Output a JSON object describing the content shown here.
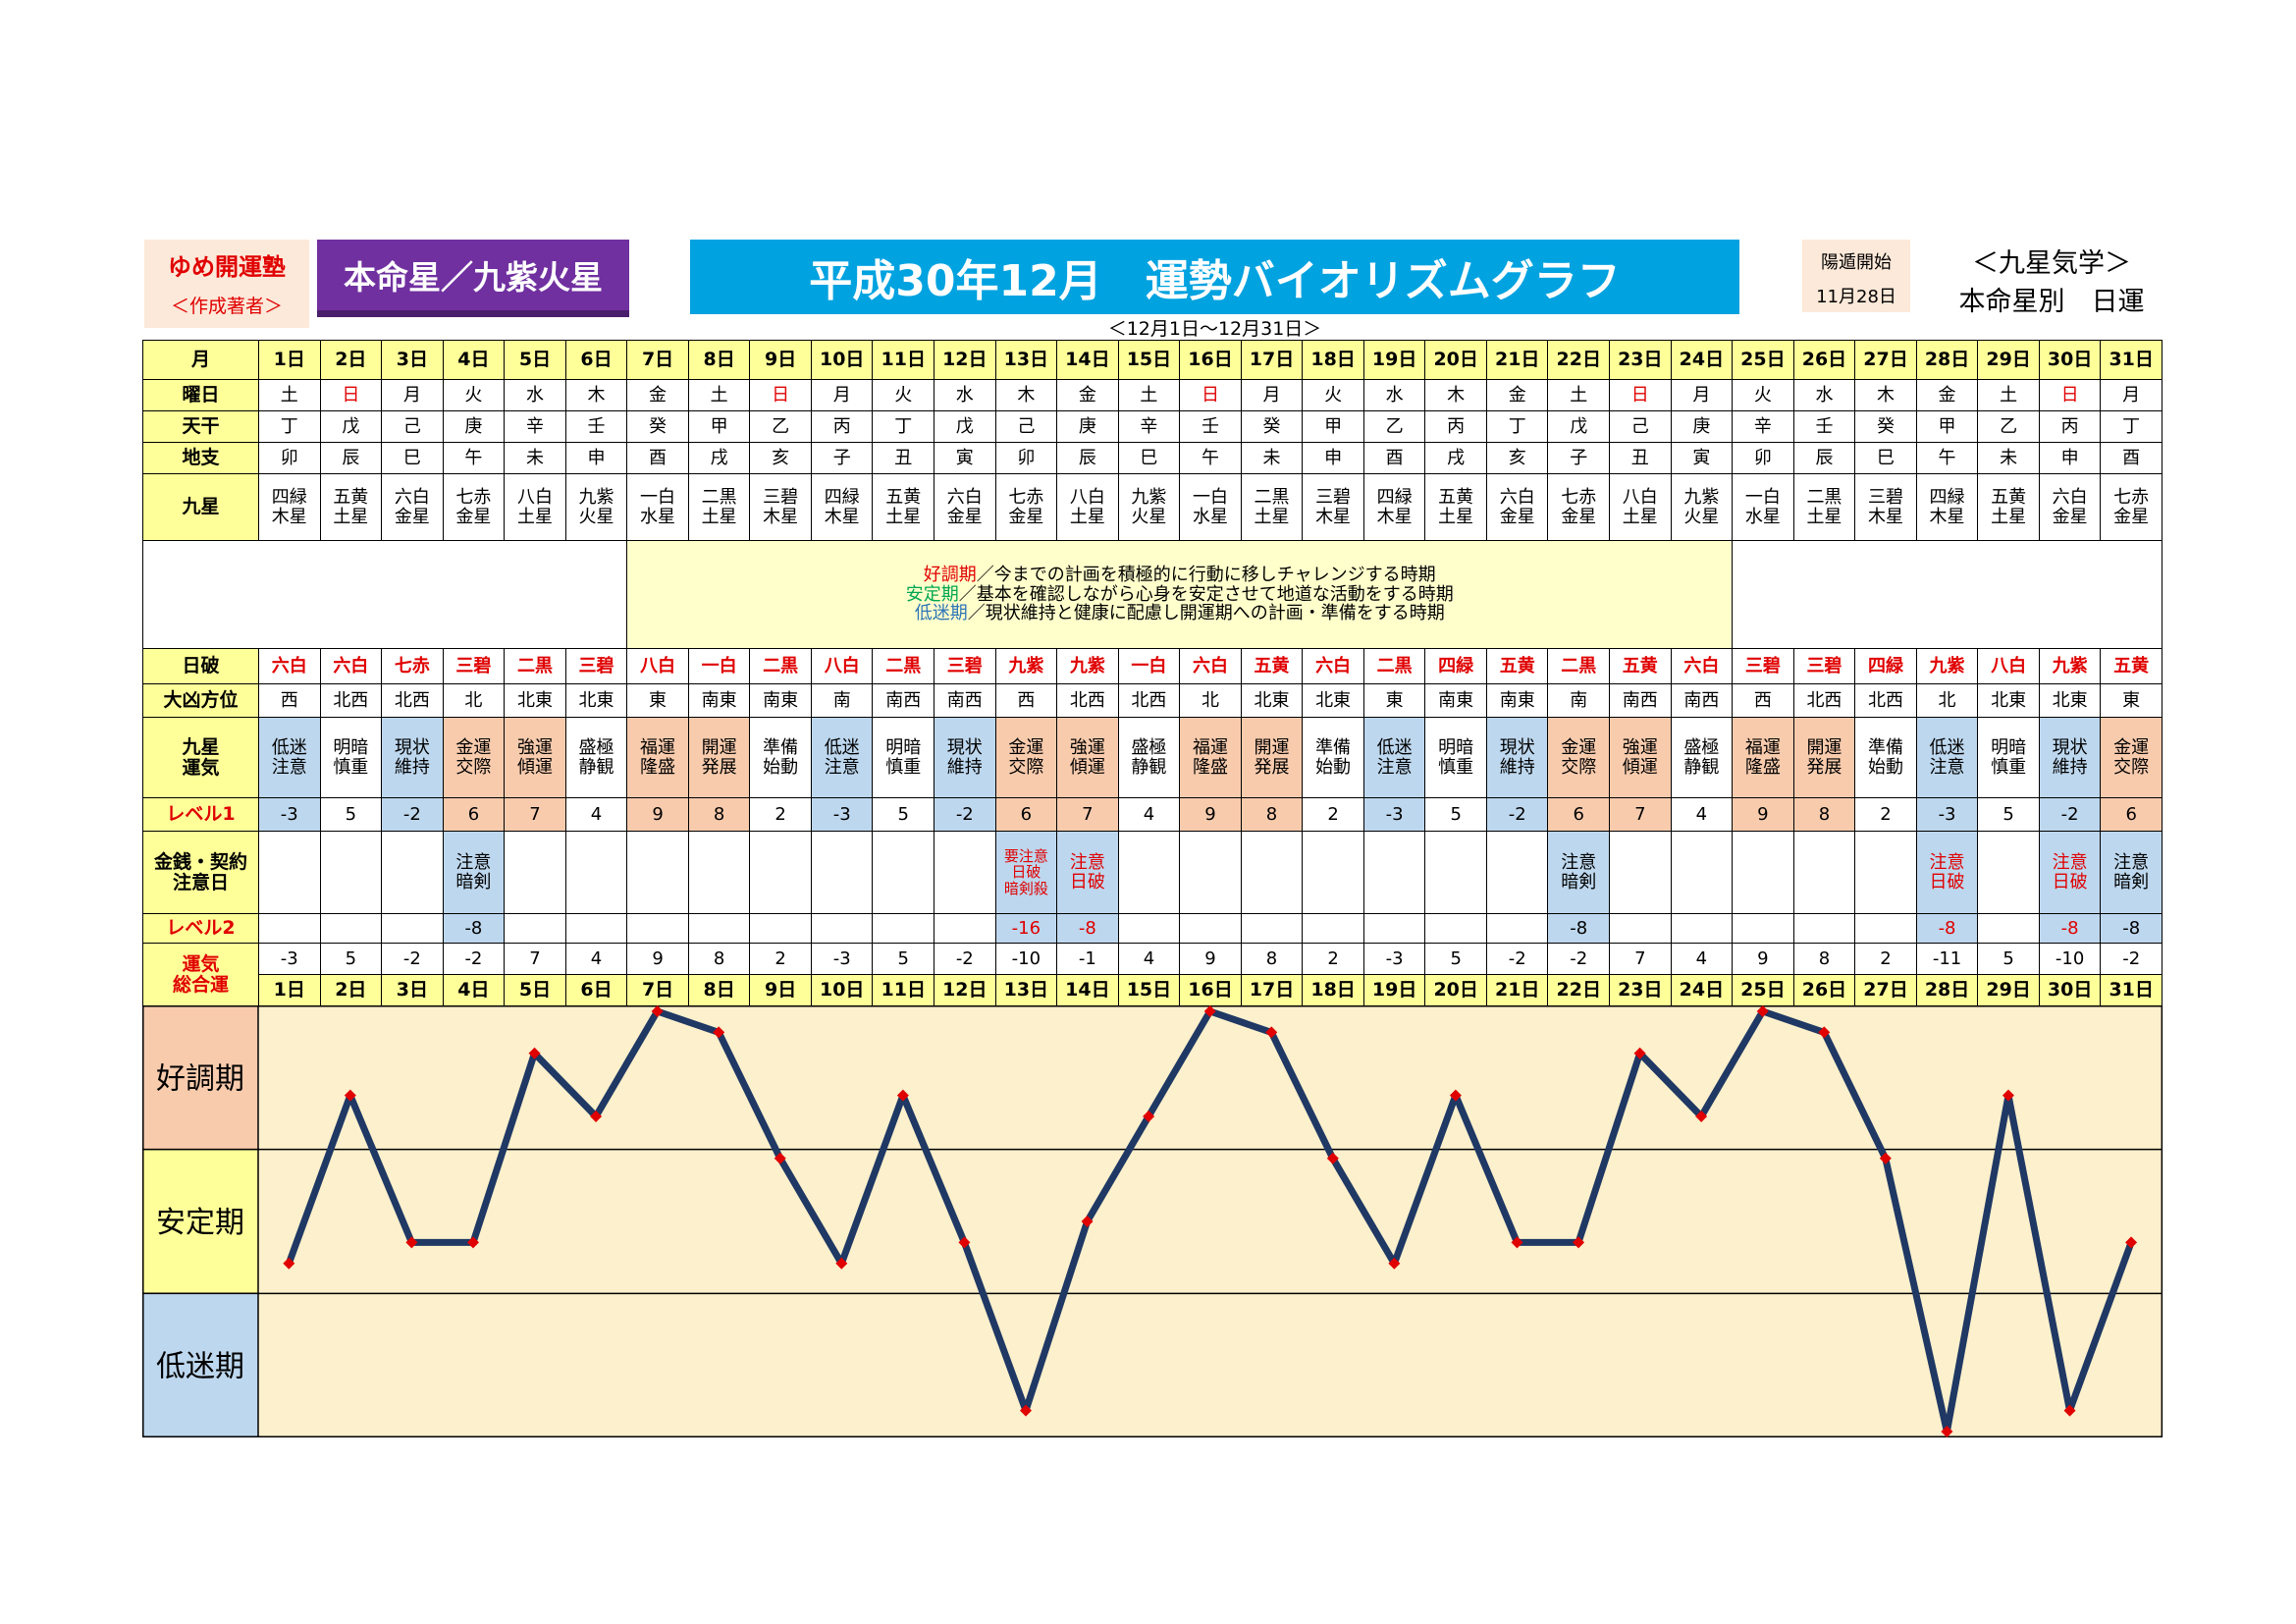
{
  "header": {
    "school_name": "ゆめ開運塾",
    "school_sub": "＜作成著者＞",
    "honmei": "本命星／九紫火星",
    "title": "平成30年12月　運勢バイオリズムグラフ",
    "period": "＜12月1日～12月31日＞",
    "yoton_label": "陽遁開始",
    "yoton_date": "11月28日",
    "kyusei_label": "＜九星気学＞",
    "kyusei_sub": "本命星別　日運"
  },
  "row_labels": {
    "month": "月",
    "weekday": "曜日",
    "tenkan": "天干",
    "chishi": "地支",
    "kyusei": "九星",
    "nippa": "日破",
    "daikyo": "大凶方位",
    "fortune": [
      "九星",
      "運気"
    ],
    "level1": "レベル1",
    "caution": [
      "金銭・契約",
      "注意日"
    ],
    "level2": "レベル2",
    "total": [
      "運気",
      "総合運"
    ]
  },
  "messages": [
    {
      "key": "好調期",
      "key_color": "#e00000",
      "text": "／今までの計画を積極的に行動に移しチャレンジする時期"
    },
    {
      "key": "安定期",
      "key_color": "#00a651",
      "text": "／基本を確認しながら心身を安定させて地道な活動をする時期"
    },
    {
      "key": "低迷期",
      "key_color": "#2e75b6",
      "text": "／現状維持と健康に配慮し開運期への計画・準備をする時期"
    }
  ],
  "days": [
    {
      "d": "1日",
      "w": "土",
      "t": "丁",
      "c": "卯",
      "k": [
        "四緑",
        "木星"
      ],
      "np": "六白",
      "dk": "西",
      "f": [
        "低迷",
        "注意"
      ],
      "l1": "-3",
      "ca": [],
      "l2": "",
      "tot": "-3"
    },
    {
      "d": "2日",
      "w": "日",
      "t": "戊",
      "c": "辰",
      "k": [
        "五黄",
        "土星"
      ],
      "np": "六白",
      "dk": "北西",
      "f": [
        "明暗",
        "慎重"
      ],
      "l1": "5",
      "ca": [],
      "l2": "",
      "tot": "5"
    },
    {
      "d": "3日",
      "w": "月",
      "t": "己",
      "c": "巳",
      "k": [
        "六白",
        "金星"
      ],
      "np": "七赤",
      "dk": "北西",
      "f": [
        "現状",
        "維持"
      ],
      "l1": "-2",
      "ca": [],
      "l2": "",
      "tot": "-2"
    },
    {
      "d": "4日",
      "w": "火",
      "t": "庚",
      "c": "午",
      "k": [
        "七赤",
        "金星"
      ],
      "np": "三碧",
      "dk": "北",
      "f": [
        "金運",
        "交際"
      ],
      "l1": "6",
      "ca": [
        "注意",
        "暗剣"
      ],
      "l2": "-8",
      "tot": "-2"
    },
    {
      "d": "5日",
      "w": "水",
      "t": "辛",
      "c": "未",
      "k": [
        "八白",
        "土星"
      ],
      "np": "二黒",
      "dk": "北東",
      "f": [
        "強運",
        "傾運"
      ],
      "l1": "7",
      "ca": [],
      "l2": "",
      "tot": "7"
    },
    {
      "d": "6日",
      "w": "木",
      "t": "壬",
      "c": "申",
      "k": [
        "九紫",
        "火星"
      ],
      "np": "三碧",
      "dk": "北東",
      "f": [
        "盛極",
        "静観"
      ],
      "l1": "4",
      "ca": [],
      "l2": "",
      "tot": "4"
    },
    {
      "d": "7日",
      "w": "金",
      "t": "癸",
      "c": "酉",
      "k": [
        "一白",
        "水星"
      ],
      "np": "八白",
      "dk": "東",
      "f": [
        "福運",
        "隆盛"
      ],
      "l1": "9",
      "ca": [],
      "l2": "",
      "tot": "9"
    },
    {
      "d": "8日",
      "w": "土",
      "t": "甲",
      "c": "戌",
      "k": [
        "二黒",
        "土星"
      ],
      "np": "一白",
      "dk": "南東",
      "f": [
        "開運",
        "発展"
      ],
      "l1": "8",
      "ca": [],
      "l2": "",
      "tot": "8"
    },
    {
      "d": "9日",
      "w": "日",
      "t": "乙",
      "c": "亥",
      "k": [
        "三碧",
        "木星"
      ],
      "np": "二黒",
      "dk": "南東",
      "f": [
        "準備",
        "始動"
      ],
      "l1": "2",
      "ca": [],
      "l2": "",
      "tot": "2"
    },
    {
      "d": "10日",
      "w": "月",
      "t": "丙",
      "c": "子",
      "k": [
        "四緑",
        "木星"
      ],
      "np": "八白",
      "dk": "南",
      "f": [
        "低迷",
        "注意"
      ],
      "l1": "-3",
      "ca": [],
      "l2": "",
      "tot": "-3"
    },
    {
      "d": "11日",
      "w": "火",
      "t": "丁",
      "c": "丑",
      "k": [
        "五黄",
        "土星"
      ],
      "np": "二黒",
      "dk": "南西",
      "f": [
        "明暗",
        "慎重"
      ],
      "l1": "5",
      "ca": [],
      "l2": "",
      "tot": "5"
    },
    {
      "d": "12日",
      "w": "水",
      "t": "戊",
      "c": "寅",
      "k": [
        "六白",
        "金星"
      ],
      "np": "三碧",
      "dk": "南西",
      "f": [
        "現状",
        "維持"
      ],
      "l1": "-2",
      "ca": [],
      "l2": "",
      "tot": "-2"
    },
    {
      "d": "13日",
      "w": "木",
      "t": "己",
      "c": "卯",
      "k": [
        "七赤",
        "金星"
      ],
      "np": "九紫",
      "dk": "西",
      "f": [
        "金運",
        "交際"
      ],
      "l1": "6",
      "ca": [
        "要注意",
        "日破",
        "暗剣殺"
      ],
      "l2": "-16",
      "tot": "-10"
    },
    {
      "d": "14日",
      "w": "金",
      "t": "庚",
      "c": "辰",
      "k": [
        "八白",
        "土星"
      ],
      "np": "九紫",
      "dk": "北西",
      "f": [
        "強運",
        "傾運"
      ],
      "l1": "7",
      "ca": [
        "注意",
        "日破"
      ],
      "l2": "-8",
      "tot": "-1"
    },
    {
      "d": "15日",
      "w": "土",
      "t": "辛",
      "c": "巳",
      "k": [
        "九紫",
        "火星"
      ],
      "np": "一白",
      "dk": "北西",
      "f": [
        "盛極",
        "静観"
      ],
      "l1": "4",
      "ca": [],
      "l2": "",
      "tot": "4"
    },
    {
      "d": "16日",
      "w": "日",
      "t": "壬",
      "c": "午",
      "k": [
        "一白",
        "水星"
      ],
      "np": "六白",
      "dk": "北",
      "f": [
        "福運",
        "隆盛"
      ],
      "l1": "9",
      "ca": [],
      "l2": "",
      "tot": "9"
    },
    {
      "d": "17日",
      "w": "月",
      "t": "癸",
      "c": "未",
      "k": [
        "二黒",
        "土星"
      ],
      "np": "五黄",
      "dk": "北東",
      "f": [
        "開運",
        "発展"
      ],
      "l1": "8",
      "ca": [],
      "l2": "",
      "tot": "8"
    },
    {
      "d": "18日",
      "w": "火",
      "t": "甲",
      "c": "申",
      "k": [
        "三碧",
        "木星"
      ],
      "np": "六白",
      "dk": "北東",
      "f": [
        "準備",
        "始動"
      ],
      "l1": "2",
      "ca": [],
      "l2": "",
      "tot": "2"
    },
    {
      "d": "19日",
      "w": "水",
      "t": "乙",
      "c": "酉",
      "k": [
        "四緑",
        "木星"
      ],
      "np": "二黒",
      "dk": "東",
      "f": [
        "低迷",
        "注意"
      ],
      "l1": "-3",
      "ca": [],
      "l2": "",
      "tot": "-3"
    },
    {
      "d": "20日",
      "w": "木",
      "t": "丙",
      "c": "戌",
      "k": [
        "五黄",
        "土星"
      ],
      "np": "四緑",
      "dk": "南東",
      "f": [
        "明暗",
        "慎重"
      ],
      "l1": "5",
      "ca": [],
      "l2": "",
      "tot": "5"
    },
    {
      "d": "21日",
      "w": "金",
      "t": "丁",
      "c": "亥",
      "k": [
        "六白",
        "金星"
      ],
      "np": "五黄",
      "dk": "南東",
      "f": [
        "現状",
        "維持"
      ],
      "l1": "-2",
      "ca": [],
      "l2": "",
      "tot": "-2"
    },
    {
      "d": "22日",
      "w": "土",
      "t": "戊",
      "c": "子",
      "k": [
        "七赤",
        "金星"
      ],
      "np": "二黒",
      "dk": "南",
      "f": [
        "金運",
        "交際"
      ],
      "l1": "6",
      "ca": [
        "注意",
        "暗剣"
      ],
      "l2": "-8",
      "tot": "-2"
    },
    {
      "d": "23日",
      "w": "日",
      "t": "己",
      "c": "丑",
      "k": [
        "八白",
        "土星"
      ],
      "np": "五黄",
      "dk": "南西",
      "f": [
        "強運",
        "傾運"
      ],
      "l1": "7",
      "ca": [],
      "l2": "",
      "tot": "7"
    },
    {
      "d": "24日",
      "w": "月",
      "t": "庚",
      "c": "寅",
      "k": [
        "九紫",
        "火星"
      ],
      "np": "六白",
      "dk": "南西",
      "f": [
        "盛極",
        "静観"
      ],
      "l1": "4",
      "ca": [],
      "l2": "",
      "tot": "4"
    },
    {
      "d": "25日",
      "w": "火",
      "t": "辛",
      "c": "卯",
      "k": [
        "一白",
        "水星"
      ],
      "np": "三碧",
      "dk": "西",
      "f": [
        "福運",
        "隆盛"
      ],
      "l1": "9",
      "ca": [],
      "l2": "",
      "tot": "9"
    },
    {
      "d": "26日",
      "w": "水",
      "t": "壬",
      "c": "辰",
      "k": [
        "二黒",
        "土星"
      ],
      "np": "三碧",
      "dk": "北西",
      "f": [
        "開運",
        "発展"
      ],
      "l1": "8",
      "ca": [],
      "l2": "",
      "tot": "8"
    },
    {
      "d": "27日",
      "w": "木",
      "t": "癸",
      "c": "巳",
      "k": [
        "三碧",
        "木星"
      ],
      "np": "四緑",
      "dk": "北西",
      "f": [
        "準備",
        "始動"
      ],
      "l1": "2",
      "ca": [],
      "l2": "",
      "tot": "2"
    },
    {
      "d": "28日",
      "w": "金",
      "t": "甲",
      "c": "午",
      "k": [
        "四緑",
        "木星"
      ],
      "np": "九紫",
      "dk": "北",
      "f": [
        "低迷",
        "注意"
      ],
      "l1": "-3",
      "ca": [
        "注意",
        "日破"
      ],
      "l2": "-8",
      "tot": "-11"
    },
    {
      "d": "29日",
      "w": "土",
      "t": "乙",
      "c": "未",
      "k": [
        "五黄",
        "土星"
      ],
      "np": "八白",
      "dk": "北東",
      "f": [
        "明暗",
        "慎重"
      ],
      "l1": "5",
      "ca": [],
      "l2": "",
      "tot": "5"
    },
    {
      "d": "30日",
      "w": "日",
      "t": "丙",
      "c": "申",
      "k": [
        "六白",
        "金星"
      ],
      "np": "九紫",
      "dk": "北東",
      "f": [
        "現状",
        "維持"
      ],
      "l1": "-2",
      "ca": [
        "注意",
        "日破"
      ],
      "l2": "-8",
      "tot": "-10"
    },
    {
      "d": "31日",
      "w": "月",
      "t": "丁",
      "c": "酉",
      "k": [
        "七赤",
        "金星"
      ],
      "np": "五黄",
      "dk": "東",
      "f": [
        "金運",
        "交際"
      ],
      "l1": "6",
      "ca": [
        "注意",
        "暗剣"
      ],
      "l2": "-8",
      "tot": "-2"
    }
  ],
  "chart_data": {
    "type": "line",
    "title": "",
    "x": [
      "1日",
      "2日",
      "3日",
      "4日",
      "5日",
      "6日",
      "7日",
      "8日",
      "9日",
      "10日",
      "11日",
      "12日",
      "13日",
      "14日",
      "15日",
      "16日",
      "17日",
      "18日",
      "19日",
      "20日",
      "21日",
      "22日",
      "23日",
      "24日",
      "25日",
      "26日",
      "27日",
      "28日",
      "29日",
      "30日",
      "31日"
    ],
    "series": [
      {
        "values": [
          -3,
          5,
          -2,
          -2,
          7,
          4,
          9,
          8,
          2,
          -3,
          5,
          -2,
          -10,
          -1,
          4,
          9,
          8,
          2,
          -3,
          5,
          -2,
          -2,
          7,
          4,
          9,
          8,
          2,
          -11,
          5,
          -10,
          -2
        ]
      }
    ],
    "bands": [
      "好調期",
      "安定期",
      "低迷期"
    ],
    "ylim": [
      -11,
      9
    ],
    "line_color": "#1f3864",
    "marker_color": "#e00000",
    "band_colors": {
      "label_good": "#f8cbad",
      "label_stable": "#ffff99",
      "label_low": "#bdd7ee",
      "plot_bg": "#fdf0cc"
    }
  },
  "colors": {
    "header_yellow": "#ffff99",
    "good": "#f8cbad",
    "low": "#bdd7ee",
    "red": "#e00000",
    "title_blue": "#00a2e0",
    "purple": "#7030a0"
  }
}
